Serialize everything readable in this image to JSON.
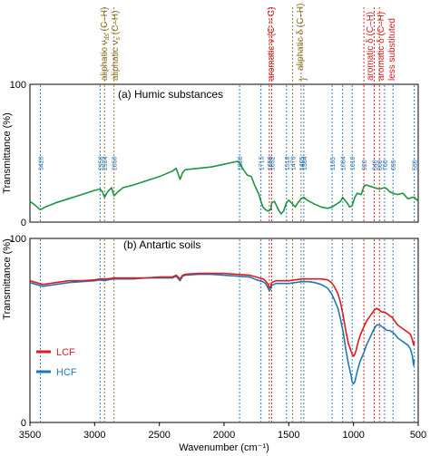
{
  "chart_data": [
    {
      "panel": "a",
      "type": "line",
      "title": "(a) Humic substances",
      "ylabel": "Transmittance (%)",
      "xlim": [
        3500,
        500
      ],
      "ylim": [
        0,
        100
      ],
      "yticks": [
        "0",
        "100"
      ],
      "series": [
        {
          "name": "",
          "color": "#1a9641",
          "x": [
            3500,
            3470,
            3420,
            3380,
            3300,
            3200,
            3100,
            3000,
            2958,
            2940,
            2924,
            2900,
            2870,
            2850,
            2820,
            2780,
            2700,
            2600,
            2500,
            2400,
            2370,
            2340,
            2320,
            2300,
            2200,
            2100,
            2000,
            1950,
            1900,
            1880,
            1850,
            1820,
            1790,
            1760,
            1730,
            1715,
            1700,
            1680,
            1660,
            1640,
            1632,
            1610,
            1580,
            1560,
            1540,
            1518,
            1500,
            1470,
            1450,
            1430,
            1405,
            1384,
            1360,
            1300,
            1250,
            1200,
            1165,
            1100,
            1084,
            1050,
            1030,
            1010,
            990,
            970,
            940,
            920,
            900,
            870,
            840,
            800,
            760,
            740,
            720,
            695,
            660,
            620,
            580,
            540,
            530,
            510,
            500
          ],
          "values": [
            15,
            13,
            9,
            11,
            14,
            17,
            20,
            23,
            24,
            22,
            18,
            22,
            25,
            19,
            22,
            25,
            27,
            30,
            33,
            37,
            39,
            31,
            36,
            38,
            39,
            40,
            42,
            43,
            44,
            43,
            38,
            34,
            33,
            26,
            20,
            15,
            11,
            9,
            8,
            9,
            14,
            15,
            9,
            6,
            8,
            14,
            16,
            13,
            11,
            14,
            17,
            18,
            16,
            13,
            11,
            10,
            11,
            15,
            18,
            14,
            11,
            12,
            18,
            21,
            20,
            26,
            27,
            26,
            25,
            24,
            25,
            24,
            22,
            21,
            20,
            21,
            17,
            18,
            18,
            16,
            17
          ]
        }
      ],
      "guides": {
        "blue": [
          3420,
          2958,
          1880,
          1715,
          1518,
          1384,
          1165,
          1084,
          1010,
          760,
          695,
          530
        ],
        "olive": [
          2924,
          2850,
          1470,
          1405
        ],
        "red": [
          1650,
          1632,
          920,
          840,
          800
        ]
      },
      "guide_labels": [
        "3420",
        "2958",
        "2924",
        "2850",
        "1880",
        "1715",
        "1650",
        "1632",
        "1518",
        "1470",
        "1405",
        "1384",
        "1165",
        "1084",
        "1010",
        "920",
        "840",
        "800",
        "760",
        "695",
        "530"
      ],
      "annotations": {
        "aliph_as": "aliphatic ν",
        "aliph_as_sub": "as",
        "aliph_as_tail": " (C–H)",
        "aliph_s": "aliphatic ν",
        "aliph_s_sub": "s",
        "aliph_s_tail": " (C–H)",
        "arom_cc": "aromatic ν (C = C)",
        "aliph_delta": "aliphatic δ (C–H)",
        "arom_delta": "aromatic δ (C–H)",
        "arom_delta_less": "aromatic δ (C–H)",
        "less_sub": "less substituted",
        "brace": "}"
      },
      "colors": {
        "blue_guide": "#1f6fb5",
        "olive_guide": "#8a6d1d",
        "red_guide": "#d7191c",
        "olive_text": "#8a6d1d",
        "red_text": "#d7191c"
      }
    },
    {
      "panel": "b",
      "type": "line",
      "title": "(b) Antartic soils",
      "ylabel": "Transmittance (%)",
      "xlabel": "Wavenumber (cm⁻¹)",
      "xlim": [
        3500,
        500
      ],
      "ylim": [
        0,
        100
      ],
      "yticks": [
        "0",
        "100"
      ],
      "xticks": [
        3500,
        3000,
        2500,
        2000,
        1500,
        1000,
        500
      ],
      "xtick_labels": [
        "3500",
        "3000",
        "2500",
        "2000",
        "1500",
        "1000",
        "500"
      ],
      "series": [
        {
          "name": "LCF",
          "color": "#e31a1c",
          "x": [
            3500,
            3450,
            3400,
            3300,
            3200,
            3100,
            3000,
            2958,
            2924,
            2900,
            2850,
            2800,
            2700,
            2600,
            2500,
            2400,
            2370,
            2340,
            2320,
            2300,
            2200,
            2100,
            2000,
            1900,
            1800,
            1750,
            1700,
            1680,
            1660,
            1650,
            1640,
            1632,
            1600,
            1550,
            1500,
            1450,
            1400,
            1350,
            1300,
            1250,
            1200,
            1170,
            1150,
            1120,
            1100,
            1080,
            1060,
            1040,
            1020,
            1010,
            1000,
            990,
            980,
            970,
            950,
            920,
            900,
            880,
            860,
            840,
            820,
            800,
            780,
            760,
            740,
            720,
            700,
            680,
            660,
            640,
            620,
            600,
            580,
            560,
            545,
            535,
            530
          ],
          "values": [
            77,
            76,
            75,
            76,
            77,
            77,
            77.5,
            78,
            78,
            78,
            78.5,
            78.5,
            78.5,
            78.5,
            79,
            79,
            80,
            78,
            80,
            80.5,
            81,
            81,
            81,
            80.5,
            80,
            79,
            78,
            77,
            75,
            73,
            74,
            76,
            77,
            77,
            77,
            77.5,
            78,
            78,
            78,
            78,
            77.5,
            76,
            74,
            70,
            65,
            58,
            50,
            43,
            39,
            37,
            36,
            37,
            39,
            42,
            47,
            52,
            55,
            57,
            59,
            61,
            62,
            61,
            60,
            60,
            59,
            58,
            57,
            55,
            53,
            52,
            51,
            50,
            49,
            48,
            45,
            42,
            44
          ]
        },
        {
          "name": "HCF",
          "color": "#1f78b4",
          "x": [
            3500,
            3450,
            3400,
            3300,
            3200,
            3100,
            3000,
            2958,
            2924,
            2900,
            2850,
            2800,
            2700,
            2600,
            2500,
            2400,
            2370,
            2340,
            2320,
            2300,
            2200,
            2100,
            2000,
            1900,
            1800,
            1750,
            1700,
            1680,
            1660,
            1650,
            1640,
            1632,
            1600,
            1550,
            1500,
            1450,
            1400,
            1350,
            1300,
            1250,
            1200,
            1170,
            1150,
            1120,
            1100,
            1080,
            1060,
            1040,
            1020,
            1010,
            1000,
            990,
            980,
            970,
            950,
            920,
            900,
            880,
            860,
            840,
            820,
            800,
            780,
            760,
            740,
            720,
            700,
            680,
            660,
            640,
            620,
            600,
            580,
            560,
            545,
            535,
            530
          ],
          "values": [
            76,
            75,
            74,
            75,
            76,
            76.5,
            77,
            77.5,
            77,
            77.5,
            78,
            78,
            78,
            78.5,
            78.5,
            78.5,
            79.5,
            77,
            79.5,
            80,
            80.5,
            80.5,
            80,
            79.5,
            79,
            77.5,
            76.5,
            75.5,
            73,
            71.5,
            72.5,
            74.5,
            75.5,
            75.5,
            75.5,
            76,
            76.5,
            76.5,
            76,
            75,
            73,
            70,
            67,
            62,
            56,
            49,
            40,
            32,
            26,
            22,
            21,
            22,
            25,
            28,
            33,
            38,
            42,
            45,
            48,
            51,
            53,
            53,
            52,
            51,
            50,
            50,
            49,
            48,
            46,
            45,
            44,
            43,
            42,
            40,
            36,
            31,
            34
          ]
        }
      ],
      "legend": [
        {
          "label": "LCF",
          "color": "#e31a1c"
        },
        {
          "label": "HCF",
          "color": "#1f78b4"
        }
      ],
      "legend_position": "left"
    }
  ]
}
